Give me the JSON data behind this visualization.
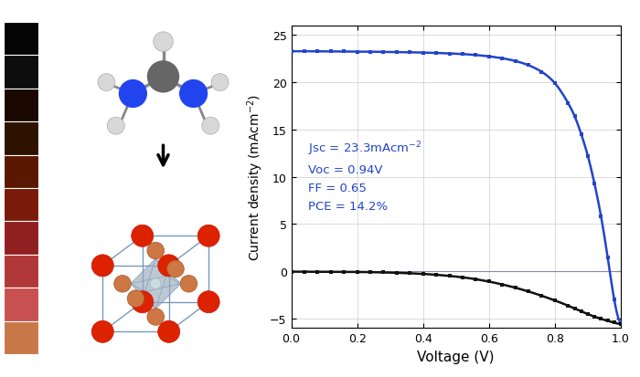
{
  "jv_blue_x": [
    0.0,
    0.04,
    0.08,
    0.12,
    0.16,
    0.2,
    0.24,
    0.28,
    0.32,
    0.36,
    0.4,
    0.44,
    0.48,
    0.52,
    0.56,
    0.6,
    0.64,
    0.68,
    0.72,
    0.76,
    0.8,
    0.84,
    0.86,
    0.88,
    0.9,
    0.92,
    0.94,
    0.96,
    0.98,
    1.0
  ],
  "jv_blue_y": [
    23.28,
    23.28,
    23.27,
    23.26,
    23.25,
    23.24,
    23.23,
    23.21,
    23.19,
    23.17,
    23.14,
    23.1,
    23.05,
    22.98,
    22.88,
    22.74,
    22.54,
    22.25,
    21.8,
    21.1,
    19.9,
    17.8,
    16.4,
    14.5,
    12.2,
    9.3,
    5.8,
    1.5,
    -3.0,
    -5.5
  ],
  "jv_black_x": [
    0.0,
    0.04,
    0.08,
    0.12,
    0.16,
    0.2,
    0.24,
    0.28,
    0.32,
    0.36,
    0.4,
    0.44,
    0.48,
    0.52,
    0.56,
    0.6,
    0.64,
    0.68,
    0.72,
    0.76,
    0.8,
    0.84,
    0.86,
    0.88,
    0.9,
    0.92,
    0.94,
    0.96,
    0.98,
    1.0
  ],
  "jv_black_y": [
    -0.05,
    -0.05,
    -0.05,
    -0.06,
    -0.07,
    -0.08,
    -0.1,
    -0.13,
    -0.17,
    -0.22,
    -0.29,
    -0.38,
    -0.5,
    -0.65,
    -0.85,
    -1.1,
    -1.4,
    -1.75,
    -2.15,
    -2.6,
    -3.1,
    -3.65,
    -3.95,
    -4.25,
    -4.55,
    -4.8,
    -5.05,
    -5.25,
    -5.45,
    -5.6
  ],
  "xlabel": "Voltage (V)",
  "ylabel": "Current density (mAcm$^{-2}$)",
  "xlim": [
    0.0,
    1.0
  ],
  "ylim": [
    -6,
    26
  ],
  "yticks": [
    -5,
    0,
    5,
    10,
    15,
    20,
    25
  ],
  "xticks": [
    0.0,
    0.2,
    0.4,
    0.6,
    0.8,
    1.0
  ],
  "blue_color": "#2244cc",
  "black_color": "#111111",
  "annotation_color": "#2244cc",
  "colorbar_colors": [
    "#050505",
    "#0d0d0d",
    "#1a0800",
    "#2e1200",
    "#5a1800",
    "#7a1a08",
    "#902020",
    "#b03838",
    "#c85050",
    "#c87848"
  ],
  "bg_color": "#ffffff",
  "plot_bg": "#f5f5f5"
}
